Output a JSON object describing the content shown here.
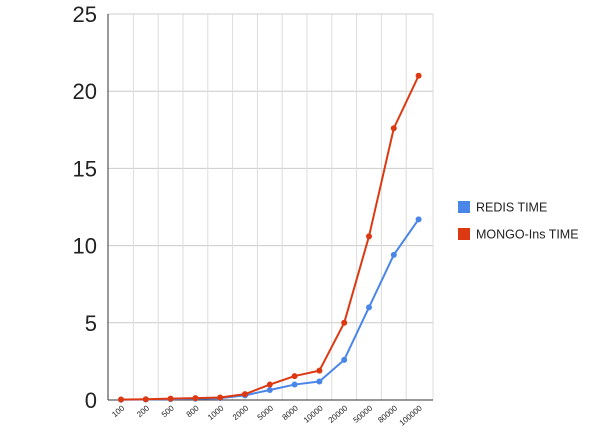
{
  "chart_data": {
    "type": "line",
    "categories": [
      "100",
      "200",
      "500",
      "800",
      "1000",
      "2000",
      "5000",
      "8000",
      "10000",
      "20000",
      "50000",
      "80000",
      "100000"
    ],
    "series": [
      {
        "name": "REDIS TIME",
        "color": "#4a86e8",
        "values": [
          0.02,
          0.03,
          0.06,
          0.08,
          0.12,
          0.3,
          0.65,
          1.0,
          1.2,
          2.6,
          6.0,
          9.4,
          11.7
        ]
      },
      {
        "name": "MONGO-Ins TIME",
        "color": "#dc3912",
        "values": [
          0.03,
          0.05,
          0.09,
          0.12,
          0.16,
          0.38,
          1.0,
          1.55,
          1.9,
          5.0,
          10.6,
          17.6,
          21.0
        ]
      }
    ],
    "ylim": [
      0,
      25
    ],
    "yticks": [
      0,
      5,
      10,
      15,
      20,
      25
    ],
    "grid": true,
    "legend": "right"
  }
}
